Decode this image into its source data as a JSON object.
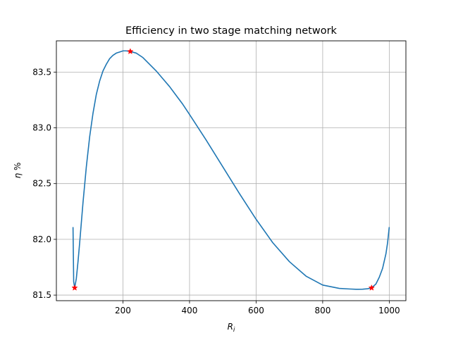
{
  "chart_data": {
    "type": "line",
    "title": "Efficiency in two stage matching network",
    "xlabel_var": "R",
    "xlabel_sub": "i",
    "ylabel_var": "η",
    "ylabel_unit": " %",
    "xlim": [
      0,
      1050
    ],
    "ylim": [
      81.45,
      83.78
    ],
    "xticks": [
      200,
      400,
      600,
      800,
      1000
    ],
    "yticks": [
      81.5,
      82.0,
      82.5,
      83.0,
      83.5
    ],
    "xtick_labels": [
      "200",
      "400",
      "600",
      "800",
      "1000"
    ],
    "ytick_labels": [
      "81.5",
      "82.0",
      "82.5",
      "83.0",
      "83.5"
    ],
    "grid": true,
    "line_color": "#1f77b4",
    "marker_color": "#ff0000",
    "series": [
      {
        "x": [
          50,
          52,
          55,
          60,
          65,
          70,
          80,
          90,
          100,
          110,
          120,
          130,
          140,
          150,
          160,
          170,
          180,
          190,
          200,
          210,
          222,
          240,
          260,
          280,
          300,
          320,
          340,
          360,
          380,
          400,
          450,
          500,
          550,
          600,
          650,
          700,
          750,
          800,
          850,
          880,
          900,
          920,
          935,
          947,
          960,
          970,
          980,
          990,
          995,
          1000
        ],
        "y": [
          82.11,
          81.62,
          81.565,
          81.65,
          81.8,
          81.97,
          82.33,
          82.65,
          82.92,
          83.13,
          83.3,
          83.42,
          83.51,
          83.57,
          83.62,
          83.65,
          83.67,
          83.68,
          83.69,
          83.69,
          83.685,
          83.67,
          83.63,
          83.57,
          83.51,
          83.44,
          83.37,
          83.29,
          83.21,
          83.12,
          82.89,
          82.65,
          82.41,
          82.18,
          81.97,
          81.8,
          81.67,
          81.59,
          81.56,
          81.555,
          81.552,
          81.553,
          81.557,
          81.565,
          81.6,
          81.66,
          81.74,
          81.87,
          81.97,
          82.11
        ]
      }
    ],
    "markers": [
      {
        "x": 55,
        "y": 81.565
      },
      {
        "x": 222,
        "y": 83.685
      },
      {
        "x": 947,
        "y": 81.565
      }
    ]
  }
}
